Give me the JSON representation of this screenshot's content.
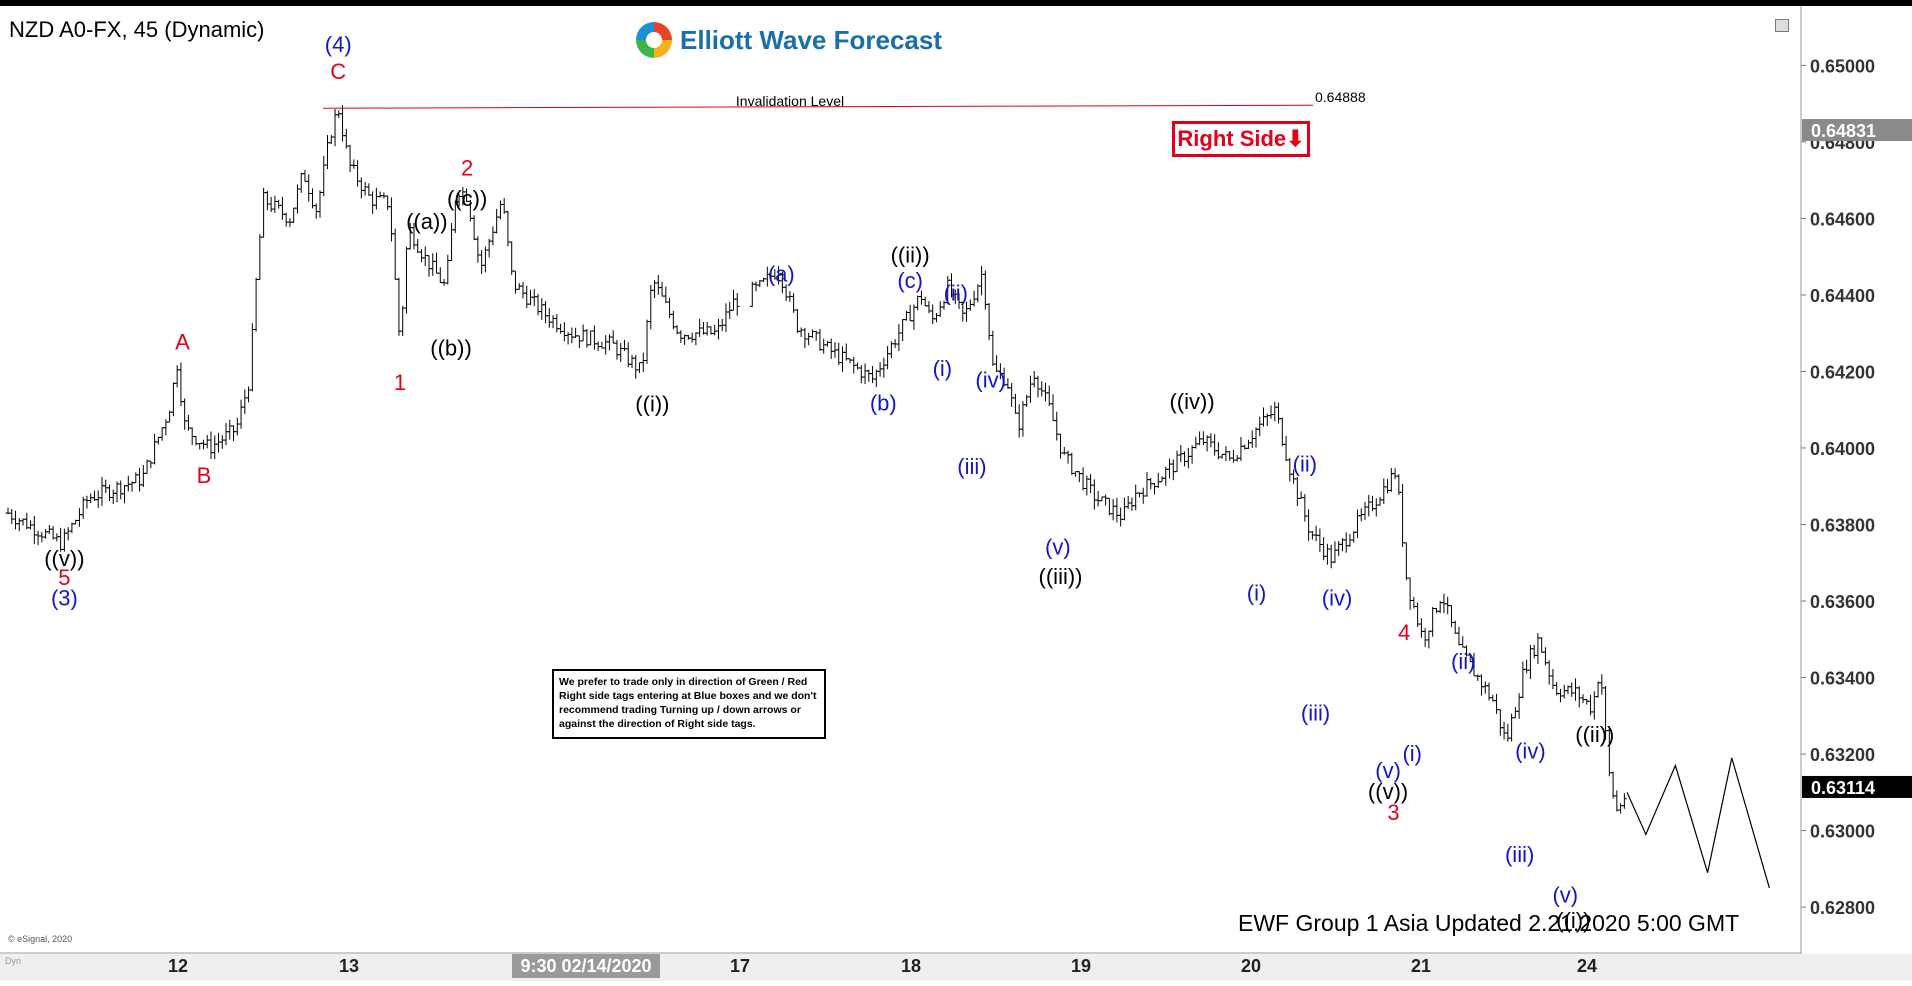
{
  "symbol_title": "NZD A0-FX, 45 (Dynamic)",
  "brand": "Elliott Wave Forecast",
  "right_side_tag": "Right Side⬇",
  "note": "We prefer to trade only in direction of Green / Red Right side tags entering at Blue boxes and we don't recommend trading Turning up / down arrows or against the direction of Right side tags.",
  "updated_text": "EWF Group 1 Asia Updated 2.21.2020 5:00 GMT",
  "copyright": "© eSignal, 2020",
  "footer_corner": "Dyn",
  "colors": {
    "red": "#e3001b",
    "blue": "#1414c8",
    "black": "#000000",
    "axis_gray": "#7f7f7f"
  },
  "chart_data": {
    "type": "line",
    "title": "NZD A0-FX, 45 (Dynamic)",
    "y_ticks": [
      "0.65000",
      "0.64800",
      "0.64600",
      "0.64400",
      "0.64200",
      "0.64000",
      "0.63800",
      "0.63600",
      "0.63400",
      "0.63200",
      "0.63000",
      "0.62800"
    ],
    "ylim": [
      0.6268,
      0.6515
    ],
    "x_ticks": [
      "12",
      "13",
      "17",
      "18",
      "19",
      "20",
      "21",
      "24"
    ],
    "x_highlight_label": "9:30 02/14/2020",
    "last_price": "0.63114",
    "marker_price": "0.64831",
    "invalidation": {
      "label": "Invalidation Level",
      "value": 0.64888,
      "value_text": "0.64888"
    },
    "price_path": [
      [
        0.0,
        0.6383
      ],
      [
        2.0,
        0.6375
      ],
      [
        3.0,
        0.6387
      ],
      [
        5.0,
        0.6392
      ],
      [
        6.0,
        0.641
      ],
      [
        6.3,
        0.6422
      ],
      [
        6.6,
        0.6405
      ],
      [
        7.5,
        0.64
      ],
      [
        8.5,
        0.6405
      ],
      [
        9.0,
        0.6418
      ],
      [
        9.2,
        0.644
      ],
      [
        9.5,
        0.6465
      ],
      [
        10.5,
        0.646
      ],
      [
        11.0,
        0.6472
      ],
      [
        11.5,
        0.6462
      ],
      [
        12.0,
        0.6482
      ],
      [
        12.3,
        0.6489
      ],
      [
        12.7,
        0.6474
      ],
      [
        13.5,
        0.6465
      ],
      [
        14.2,
        0.6464
      ],
      [
        14.6,
        0.6427
      ],
      [
        14.9,
        0.6458
      ],
      [
        15.5,
        0.645
      ],
      [
        16.3,
        0.6442
      ],
      [
        16.7,
        0.6468
      ],
      [
        17.1,
        0.6466
      ],
      [
        17.6,
        0.6447
      ],
      [
        18.4,
        0.6465
      ],
      [
        18.8,
        0.6443
      ],
      [
        20.0,
        0.6435
      ],
      [
        21.0,
        0.643
      ],
      [
        22.5,
        0.6427
      ],
      [
        23.6,
        0.642
      ],
      [
        24.0,
        0.6444
      ],
      [
        25.0,
        0.643
      ],
      [
        26.4,
        0.643
      ],
      [
        27.0,
        0.6438
      ],
      [
        28.0,
        0.6442
      ],
      [
        28.7,
        0.6447
      ],
      [
        29.4,
        0.6432
      ],
      [
        30.5,
        0.6426
      ],
      [
        32.2,
        0.6418
      ],
      [
        33.0,
        0.6428
      ],
      [
        34.0,
        0.644
      ],
      [
        34.4,
        0.6433
      ],
      [
        35.0,
        0.6442
      ],
      [
        35.6,
        0.6434
      ],
      [
        36.3,
        0.6446
      ],
      [
        36.7,
        0.642
      ],
      [
        37.2,
        0.6418
      ],
      [
        37.6,
        0.6405
      ],
      [
        38.2,
        0.642
      ],
      [
        38.8,
        0.641
      ],
      [
        39.3,
        0.6398
      ],
      [
        40.5,
        0.6387
      ],
      [
        41.5,
        0.6382
      ],
      [
        42.0,
        0.6388
      ],
      [
        43.0,
        0.6393
      ],
      [
        44.5,
        0.6402
      ],
      [
        45.5,
        0.6397
      ],
      [
        46.5,
        0.6405
      ],
      [
        47.2,
        0.641
      ],
      [
        47.8,
        0.6393
      ],
      [
        48.5,
        0.6378
      ],
      [
        49.3,
        0.6371
      ],
      [
        50.0,
        0.6378
      ],
      [
        51.0,
        0.6387
      ],
      [
        51.7,
        0.6394
      ],
      [
        52.1,
        0.6365
      ],
      [
        52.7,
        0.635
      ],
      [
        53.4,
        0.6362
      ],
      [
        54.0,
        0.6348
      ],
      [
        55.3,
        0.6334
      ],
      [
        55.8,
        0.6323
      ],
      [
        56.5,
        0.6343
      ],
      [
        57.0,
        0.635
      ],
      [
        57.6,
        0.6337
      ],
      [
        58.4,
        0.6336
      ],
      [
        59.0,
        0.6332
      ],
      [
        59.3,
        0.6343
      ],
      [
        59.6,
        0.6316
      ],
      [
        59.9,
        0.6305
      ],
      [
        60.3,
        0.631
      ]
    ],
    "projection": [
      [
        60.3,
        0.631
      ],
      [
        61.0,
        0.6299
      ],
      [
        62.1,
        0.6317
      ],
      [
        63.3,
        0.6289
      ],
      [
        64.2,
        0.6319
      ],
      [
        65.6,
        0.6285
      ]
    ],
    "annotations": [
      {
        "text": "((v))",
        "x": 2.1,
        "y": 0.63692,
        "color": "black"
      },
      {
        "text": "5",
        "x": 2.1,
        "y": 0.63642,
        "color": "red"
      },
      {
        "text": "(3)",
        "x": 2.1,
        "y": 0.63588,
        "color": "blue"
      },
      {
        "text": "A",
        "x": 6.5,
        "y": 0.64258,
        "color": "red"
      },
      {
        "text": "B",
        "x": 7.3,
        "y": 0.63908,
        "color": "red"
      },
      {
        "text": "(4)",
        "x": 12.3,
        "y": 0.65035,
        "color": "blue"
      },
      {
        "text": "C",
        "x": 12.3,
        "y": 0.64965,
        "color": "red"
      },
      {
        "text": "1",
        "x": 14.6,
        "y": 0.64152,
        "color": "red"
      },
      {
        "text": "((a))",
        "x": 15.6,
        "y": 0.64572,
        "color": "black"
      },
      {
        "text": "((b))",
        "x": 16.5,
        "y": 0.64242,
        "color": "black"
      },
      {
        "text": "((c))",
        "x": 17.1,
        "y": 0.64632,
        "color": "black"
      },
      {
        "text": "2",
        "x": 17.1,
        "y": 0.64712,
        "color": "red"
      },
      {
        "text": "((i))",
        "x": 24.0,
        "y": 0.64095,
        "color": "black"
      },
      {
        "text": "(a)",
        "x": 28.8,
        "y": 0.64435,
        "color": "blue"
      },
      {
        "text": "(b)",
        "x": 32.6,
        "y": 0.64098,
        "color": "blue"
      },
      {
        "text": "((ii))",
        "x": 33.6,
        "y": 0.64485,
        "color": "black"
      },
      {
        "text": "(c)",
        "x": 33.6,
        "y": 0.64418,
        "color": "blue"
      },
      {
        "text": "(ii)",
        "x": 35.3,
        "y": 0.64385,
        "color": "blue"
      },
      {
        "text": "(i)",
        "x": 34.8,
        "y": 0.64188,
        "color": "blue"
      },
      {
        "text": "(iv)",
        "x": 36.6,
        "y": 0.64158,
        "color": "blue"
      },
      {
        "text": "(iii)",
        "x": 35.9,
        "y": 0.63932,
        "color": "blue"
      },
      {
        "text": "(v)",
        "x": 39.1,
        "y": 0.63722,
        "color": "blue"
      },
      {
        "text": "((iii))",
        "x": 39.2,
        "y": 0.63645,
        "color": "black"
      },
      {
        "text": "((iv))",
        "x": 44.1,
        "y": 0.64102,
        "color": "black"
      },
      {
        "text": "(ii)",
        "x": 48.3,
        "y": 0.63938,
        "color": "blue"
      },
      {
        "text": "(i)",
        "x": 46.5,
        "y": 0.63602,
        "color": "blue"
      },
      {
        "text": "(iv)",
        "x": 49.5,
        "y": 0.63588,
        "color": "blue"
      },
      {
        "text": "(iii)",
        "x": 48.7,
        "y": 0.63288,
        "color": "blue"
      },
      {
        "text": "4",
        "x": 52.0,
        "y": 0.63498,
        "color": "red"
      },
      {
        "text": "(ii)",
        "x": 54.2,
        "y": 0.63422,
        "color": "blue"
      },
      {
        "text": "(v)",
        "x": 51.4,
        "y": 0.63138,
        "color": "blue"
      },
      {
        "text": "(i)",
        "x": 52.3,
        "y": 0.63182,
        "color": "blue"
      },
      {
        "text": "((v))",
        "x": 51.4,
        "y": 0.63082,
        "color": "black"
      },
      {
        "text": "3",
        "x": 51.6,
        "y": 0.63028,
        "color": "red"
      },
      {
        "text": "(iii)",
        "x": 56.3,
        "y": 0.62918,
        "color": "blue"
      },
      {
        "text": "(iv)",
        "x": 56.7,
        "y": 0.63188,
        "color": "blue"
      },
      {
        "text": "((ii))",
        "x": 59.1,
        "y": 0.63232,
        "color": "black"
      },
      {
        "text": "(v)",
        "x": 58.0,
        "y": 0.62812,
        "color": "blue"
      },
      {
        "text": "((i))",
        "x": 58.3,
        "y": 0.62745,
        "color": "black"
      }
    ]
  }
}
